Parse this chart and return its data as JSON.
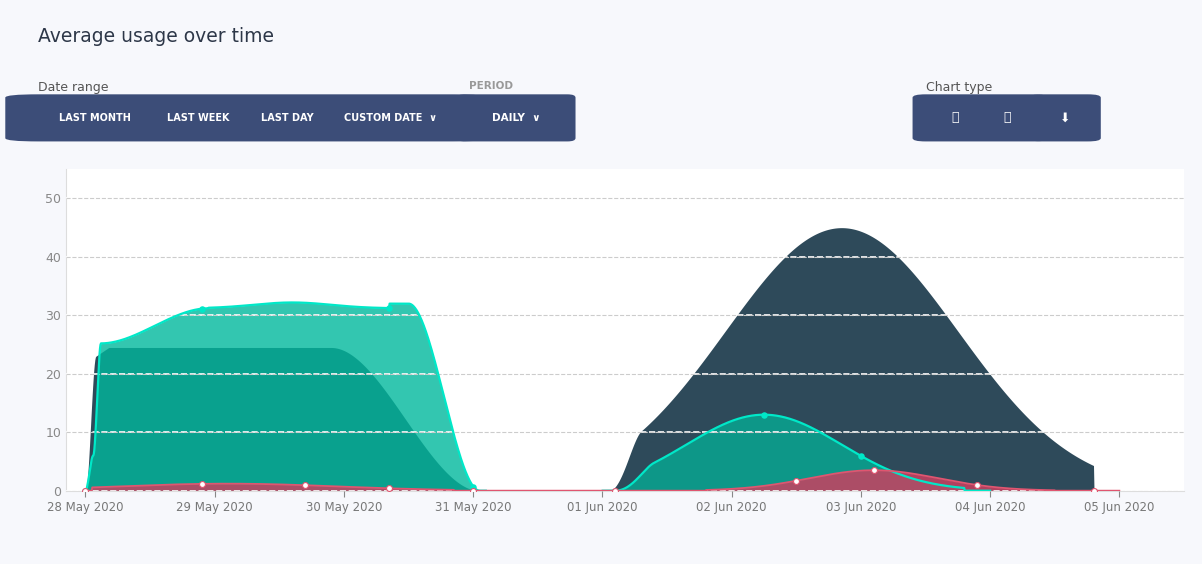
{
  "title": "Average usage over time",
  "bg_color": "#f7f8fc",
  "chart_bg": "#ffffff",
  "ylim": [
    0,
    55
  ],
  "yticks": [
    0,
    10,
    20,
    30,
    40,
    50
  ],
  "xtick_labels": [
    "28 May 2020",
    "29 May 2020",
    "30 May 2020",
    "31 May 2020",
    "01 Jun 2020",
    "02 Jun 2020",
    "03 Jun 2020",
    "04 Jun 2020",
    "05 Jun 2020"
  ],
  "button_bg": "#3d4f7c",
  "button_text": "#ffffff",
  "dark_fill_color": "#2e4f5e",
  "dark_fill_color2": "#3a5568",
  "cyan_fill_color": "#00c9a7",
  "cyan_line_color": "#00e5c4",
  "red_line_color": "#e05c6e",
  "red_fill_color": "#d94f6a"
}
